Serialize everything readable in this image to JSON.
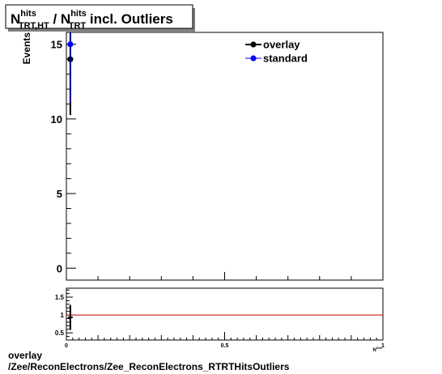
{
  "chart_data": [
    {
      "panel": "main",
      "type": "scatter",
      "title": {
        "main": "N",
        "sup1": "hits",
        "sub1": "TRT,HT",
        "sep": " / N",
        "sup2": "hits",
        "sub2": "TRT",
        "suffix": " incl. Outliers"
      },
      "ylabel": "Events",
      "xlim": [
        0,
        1
      ],
      "ylim": [
        -0.8,
        15.8
      ],
      "y_ticks": [
        "0",
        "5",
        "10",
        "15"
      ],
      "legend_position": "top-right",
      "series": [
        {
          "name": "overlay",
          "color": "#000000",
          "points": [
            {
              "x": 0.0125,
              "y": 14,
              "err": 3.74
            }
          ]
        },
        {
          "name": "standard",
          "color": "#0000ff",
          "points": [
            {
              "x": 0.0125,
              "y": 15,
              "err": 3.87
            }
          ]
        }
      ]
    },
    {
      "panel": "ratio",
      "type": "scatter",
      "xlim": [
        0,
        1
      ],
      "ylim": [
        0.3,
        1.75
      ],
      "y_ticks": [
        "0.5",
        "1",
        "1.5"
      ],
      "x_ticks": [
        "0",
        "0.5",
        "1"
      ],
      "xlabel": {
        "main": "N",
        "sup": "hits"
      },
      "reference_line": {
        "y": 1,
        "color": "#cc0000"
      },
      "points": [
        {
          "x": 0.0125,
          "y": 0.933,
          "err": 0.35
        }
      ]
    }
  ],
  "footer": {
    "line1": "overlay",
    "line2": "/Zee/ReconElectrons/Zee_ReconElectrons_RTRTHitsOutliers"
  }
}
